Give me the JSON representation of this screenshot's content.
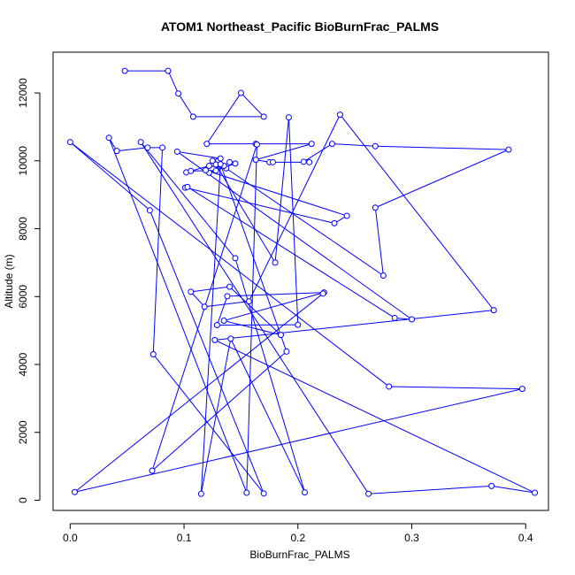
{
  "chart_data": {
    "type": "line",
    "title": "ATOM1 Northeast_Pacific BioBurnFrac_PALMS",
    "xlabel": "BioBurnFrac_PALMS",
    "ylabel": "Altitude (m)",
    "xlim": [
      -0.015,
      0.42
    ],
    "ylim": [
      -300,
      13200
    ],
    "x_ticks": [
      0.0,
      0.1,
      0.2,
      0.3,
      0.4
    ],
    "x_tick_labels": [
      "0.0",
      "0.1",
      "0.2",
      "0.3",
      "0.4"
    ],
    "y_ticks": [
      0,
      2000,
      4000,
      6000,
      8000,
      10000,
      12000
    ],
    "y_tick_labels": [
      "0",
      "2000",
      "4000",
      "6000",
      "8000",
      "10000",
      "12000"
    ],
    "grid": false,
    "series": [
      {
        "color": "#0000ff",
        "marker": "open-circle",
        "points": [
          [
            0.048,
            12650
          ],
          [
            0.086,
            12650
          ],
          [
            0.095,
            11980
          ],
          [
            0.108,
            11300
          ],
          [
            0.17,
            11300
          ],
          [
            0.15,
            12000
          ],
          [
            0.12,
            10500
          ],
          [
            0.163,
            10500
          ],
          [
            0.212,
            10500
          ],
          [
            0.163,
            10030
          ],
          [
            0.175,
            9960
          ],
          [
            0.178,
            9960
          ],
          [
            0.21,
            9960
          ],
          [
            0.205,
            9970
          ],
          [
            0.23,
            10500
          ],
          [
            0.268,
            10430
          ],
          [
            0.385,
            10330
          ],
          [
            0.268,
            8620
          ],
          [
            0.275,
            6620
          ],
          [
            0.137,
            9780
          ],
          [
            0.122,
            9850
          ],
          [
            0.102,
            9660
          ],
          [
            0.106,
            9700
          ],
          [
            0.128,
            9710
          ],
          [
            0.13,
            10000
          ],
          [
            0.135,
            9850
          ],
          [
            0.14,
            9960
          ],
          [
            0.145,
            9920
          ],
          [
            0.122,
            9650
          ],
          [
            0.119,
            9720
          ],
          [
            0.243,
            8380
          ],
          [
            0.232,
            8160
          ],
          [
            0.101,
            9210
          ],
          [
            0.103,
            9230
          ],
          [
            0.285,
            5370
          ],
          [
            0.3,
            5330
          ],
          [
            0.094,
            10270
          ],
          [
            0.132,
            10070
          ],
          [
            0.125,
            10000
          ],
          [
            0.128,
            9890
          ],
          [
            0.18,
            7000
          ],
          [
            0.192,
            11280
          ],
          [
            0.2,
            5170
          ],
          [
            0.129,
            5160
          ],
          [
            0.138,
            6010
          ],
          [
            0.223,
            6120
          ],
          [
            0.135,
            5290
          ],
          [
            0.185,
            4870
          ],
          [
            0.14,
            6290
          ],
          [
            0.106,
            6140
          ],
          [
            0.118,
            5700
          ],
          [
            0.157,
            5860
          ],
          [
            0.237,
            11360
          ],
          [
            0.372,
            5600
          ],
          [
            0.127,
            4720
          ],
          [
            0.408,
            220
          ],
          [
            0.37,
            420
          ],
          [
            0.262,
            190
          ],
          [
            0.062,
            10550
          ],
          [
            0.145,
            7130
          ],
          [
            0.206,
            230
          ],
          [
            0.141,
            4760
          ],
          [
            0.115,
            190
          ],
          [
            0.132,
            9900
          ],
          [
            0.19,
            4380
          ],
          [
            0.072,
            870
          ],
          [
            0.164,
            10480
          ],
          [
            0.155,
            220
          ],
          [
            0.034,
            10680
          ],
          [
            0.041,
            10290
          ],
          [
            0.068,
            10390
          ],
          [
            0.081,
            10390
          ],
          [
            0.073,
            4300
          ],
          [
            0.17,
            200
          ],
          [
            0.07,
            8540
          ],
          [
            0.0,
            10550
          ],
          [
            0.28,
            3350
          ],
          [
            0.397,
            3280
          ],
          [
            0.004,
            240
          ],
          [
            0.222,
            6090
          ]
        ]
      }
    ]
  }
}
